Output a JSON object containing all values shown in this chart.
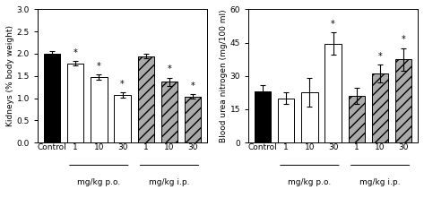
{
  "left": {
    "ylabel": "Kidneys (% body weight)",
    "ylim": [
      0.0,
      3.0
    ],
    "yticks": [
      0.0,
      0.5,
      1.0,
      1.5,
      2.0,
      2.5,
      3.0
    ],
    "categories": [
      "Control",
      "1",
      "10",
      "30",
      "1",
      "10",
      "30"
    ],
    "values": [
      2.0,
      1.78,
      1.47,
      1.07,
      1.94,
      1.37,
      1.04
    ],
    "errors": [
      0.07,
      0.05,
      0.06,
      0.06,
      0.05,
      0.09,
      0.05
    ],
    "sig": [
      false,
      true,
      true,
      true,
      false,
      true,
      true
    ],
    "colors": [
      "black",
      "white",
      "white",
      "white",
      "#aaaaaa",
      "#aaaaaa",
      "#aaaaaa"
    ],
    "hatches": [
      "",
      "",
      "",
      "",
      "///",
      "///",
      "///"
    ],
    "group_label_po": "mg/kg p.o.",
    "group_label_ip": "mg/kg i.p."
  },
  "right": {
    "ylabel": "Blood urea nitrogen (mg/100 ml)",
    "ylim": [
      0,
      60
    ],
    "yticks": [
      0,
      15,
      30,
      45,
      60
    ],
    "categories": [
      "Control",
      "1",
      "10",
      "30",
      "1",
      "10",
      "30"
    ],
    "values": [
      23.0,
      20.0,
      22.5,
      44.5,
      21.0,
      31.0,
      37.5
    ],
    "errors": [
      3.0,
      2.5,
      6.5,
      5.0,
      3.5,
      4.0,
      5.0
    ],
    "sig": [
      false,
      false,
      false,
      true,
      false,
      true,
      true
    ],
    "colors": [
      "black",
      "white",
      "white",
      "white",
      "#aaaaaa",
      "#aaaaaa",
      "#aaaaaa"
    ],
    "hatches": [
      "",
      "",
      "",
      "",
      "///",
      "///",
      "///"
    ],
    "group_label_po": "mg/kg p.o.",
    "group_label_ip": "mg/kg i.p."
  }
}
